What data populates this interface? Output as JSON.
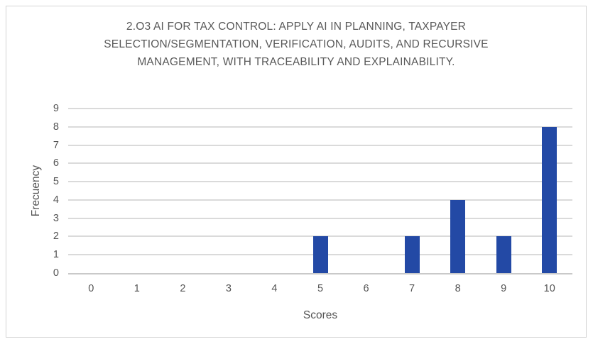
{
  "chart_data": {
    "type": "bar",
    "title": "2.O3 AI FOR TAX CONTROL: APPLY AI IN PLANNING, TAXPAYER SELECTION/SEGMENTATION, VERIFICATION, AUDITS, AND RECURSIVE MANAGEMENT, WITH TRACEABILITY AND EXPLAINABILITY.",
    "title_lines": [
      "2.O3 AI FOR TAX CONTROL: APPLY AI IN PLANNING, TAXPAYER",
      "SELECTION/SEGMENTATION, VERIFICATION, AUDITS, AND RECURSIVE",
      "MANAGEMENT, WITH TRACEABILITY AND EXPLAINABILITY."
    ],
    "categories": [
      "0",
      "1",
      "2",
      "3",
      "4",
      "5",
      "6",
      "7",
      "8",
      "9",
      "10"
    ],
    "values": [
      0,
      0,
      0,
      0,
      0,
      2,
      0,
      2,
      4,
      2,
      8
    ],
    "xlabel": "Scores",
    "ylabel": "Frecuency",
    "ylim": [
      0,
      9
    ],
    "y_tick_step": 1,
    "grid": "horizontal",
    "legend": "none",
    "bar_color": "#2349A5",
    "gridline_color": "#DADADA",
    "axis_line_color": "#C9C9C9",
    "text_color": "#595959"
  }
}
